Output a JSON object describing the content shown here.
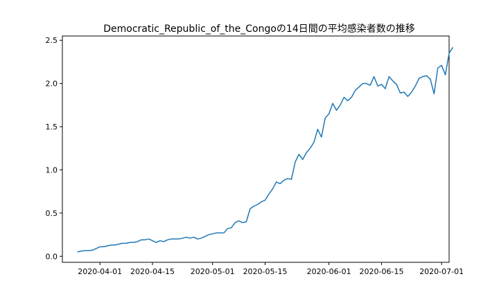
{
  "chart_data": {
    "type": "line",
    "title": "Democratic_Republic_of_the_Congoの14日間の平均感染者数の推移",
    "xlabel": "",
    "ylabel": "",
    "x_range": [
      "2020-03-22",
      "2020-07-03"
    ],
    "ylim": [
      -0.07,
      2.55
    ],
    "grid": false,
    "x_ticks": [
      {
        "value": "2020-04-01",
        "label": "2020-04-01"
      },
      {
        "value": "2020-04-15",
        "label": "2020-04-15"
      },
      {
        "value": "2020-05-01",
        "label": "2020-05-01"
      },
      {
        "value": "2020-05-15",
        "label": "2020-05-15"
      },
      {
        "value": "2020-06-01",
        "label": "2020-06-01"
      },
      {
        "value": "2020-06-15",
        "label": "2020-06-15"
      },
      {
        "value": "2020-07-01",
        "label": "2020-07-01"
      }
    ],
    "y_ticks": [
      {
        "value": 0.0,
        "label": "0.0"
      },
      {
        "value": 0.5,
        "label": "0.5"
      },
      {
        "value": 1.0,
        "label": "1.0"
      },
      {
        "value": 1.5,
        "label": "1.5"
      },
      {
        "value": 2.0,
        "label": "2.0"
      },
      {
        "value": 2.5,
        "label": "2.5"
      }
    ],
    "series": [
      {
        "color": "#1f77b4",
        "start_date": "2020-03-26",
        "values": [
          0.05,
          0.06,
          0.065,
          0.065,
          0.07,
          0.09,
          0.11,
          0.11,
          0.12,
          0.13,
          0.13,
          0.14,
          0.15,
          0.15,
          0.16,
          0.16,
          0.17,
          0.19,
          0.19,
          0.2,
          0.18,
          0.16,
          0.18,
          0.17,
          0.19,
          0.2,
          0.2,
          0.2,
          0.21,
          0.22,
          0.21,
          0.22,
          0.2,
          0.21,
          0.23,
          0.25,
          0.26,
          0.27,
          0.27,
          0.27,
          0.32,
          0.33,
          0.39,
          0.41,
          0.39,
          0.4,
          0.55,
          0.58,
          0.6,
          0.63,
          0.65,
          0.72,
          0.78,
          0.86,
          0.84,
          0.88,
          0.9,
          0.89,
          1.09,
          1.18,
          1.12,
          1.2,
          1.25,
          1.32,
          1.47,
          1.38,
          1.6,
          1.65,
          1.77,
          1.69,
          1.75,
          1.84,
          1.8,
          1.84,
          1.92,
          1.96,
          2.0,
          2.0,
          1.98,
          2.08,
          1.97,
          1.99,
          1.94,
          2.08,
          2.03,
          1.99,
          1.89,
          1.9,
          1.85,
          1.9,
          1.97,
          2.06,
          2.08,
          2.09,
          2.05,
          1.88,
          2.18,
          2.21,
          2.1,
          2.35,
          2.42
        ]
      }
    ]
  }
}
